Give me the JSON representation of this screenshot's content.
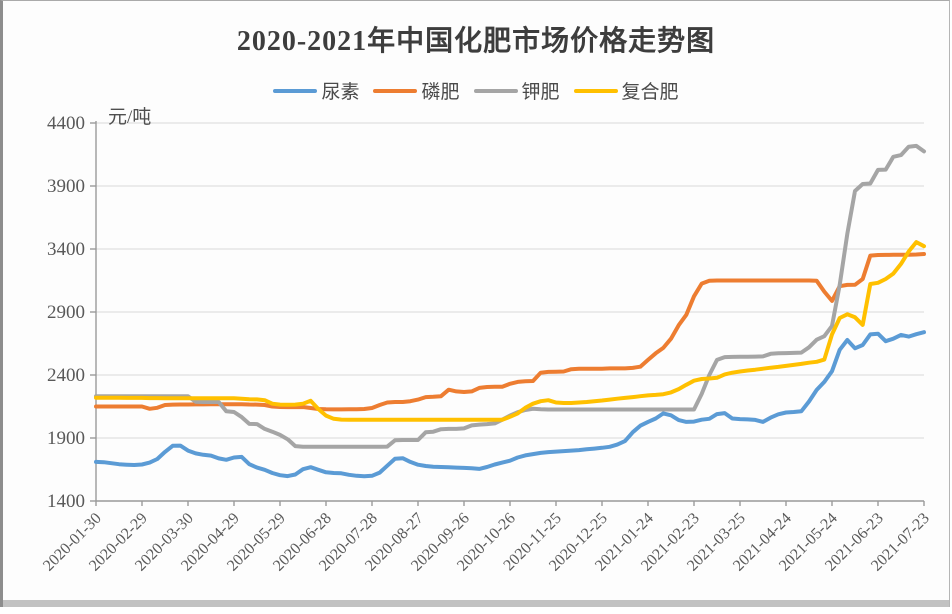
{
  "page": {
    "background": "#fdfdfd",
    "bottom_bar_color": "#c2c2c2"
  },
  "colors": {
    "grid": "#d9d9d9",
    "axis": "#9a9a9a",
    "tick_text": "#595959",
    "title_text": "#3d3d3d"
  },
  "chart_data": {
    "type": "line",
    "title": "2020-2021年中国化肥市场价格走势图",
    "unit_label": "元/吨",
    "legend_position": "top",
    "grid": "horizontal",
    "y_axis": {
      "min": 1400,
      "max": 4400,
      "step": 500,
      "ticks": [
        1400,
        1900,
        2400,
        2900,
        3400,
        3900,
        4400
      ]
    },
    "x_tick_labels": [
      "2020-01-30",
      "2020-02-29",
      "2020-03-30",
      "2020-04-29",
      "2020-05-29",
      "2020-06-28",
      "2020-07-28",
      "2020-08-27",
      "2020-09-26",
      "2020-10-26",
      "2020-11-25",
      "2020-12-25",
      "2021-01-24",
      "2021-02-23",
      "2021-03-25",
      "2021-04-24",
      "2021-05-24",
      "2021-06-23",
      "2021-07-23"
    ],
    "x_tick_every": 6,
    "dates": [
      "2020-01-30",
      "2020-02-04",
      "2020-02-09",
      "2020-02-14",
      "2020-02-19",
      "2020-02-24",
      "2020-02-29",
      "2020-03-05",
      "2020-03-10",
      "2020-03-15",
      "2020-03-20",
      "2020-03-25",
      "2020-03-30",
      "2020-04-04",
      "2020-04-09",
      "2020-04-14",
      "2020-04-19",
      "2020-04-24",
      "2020-04-29",
      "2020-05-04",
      "2020-05-09",
      "2020-05-14",
      "2020-05-19",
      "2020-05-24",
      "2020-05-29",
      "2020-06-03",
      "2020-06-08",
      "2020-06-13",
      "2020-06-18",
      "2020-06-23",
      "2020-06-28",
      "2020-07-03",
      "2020-07-08",
      "2020-07-13",
      "2020-07-18",
      "2020-07-23",
      "2020-07-28",
      "2020-08-02",
      "2020-08-07",
      "2020-08-12",
      "2020-08-17",
      "2020-08-22",
      "2020-08-27",
      "2020-09-01",
      "2020-09-06",
      "2020-09-11",
      "2020-09-16",
      "2020-09-21",
      "2020-09-26",
      "2020-10-01",
      "2020-10-06",
      "2020-10-11",
      "2020-10-16",
      "2020-10-21",
      "2020-10-26",
      "2020-10-31",
      "2020-11-05",
      "2020-11-10",
      "2020-11-15",
      "2020-11-20",
      "2020-11-25",
      "2020-11-30",
      "2020-12-05",
      "2020-12-10",
      "2020-12-15",
      "2020-12-20",
      "2020-12-25",
      "2020-12-30",
      "2021-01-04",
      "2021-01-09",
      "2021-01-14",
      "2021-01-19",
      "2021-01-24",
      "2021-01-29",
      "2021-02-03",
      "2021-02-08",
      "2021-02-13",
      "2021-02-18",
      "2021-02-23",
      "2021-02-28",
      "2021-03-05",
      "2021-03-10",
      "2021-03-15",
      "2021-03-20",
      "2021-03-25",
      "2021-03-30",
      "2021-04-04",
      "2021-04-09",
      "2021-04-14",
      "2021-04-19",
      "2021-04-24",
      "2021-04-29",
      "2021-05-04",
      "2021-05-09",
      "2021-05-14",
      "2021-05-19",
      "2021-05-24",
      "2021-05-29",
      "2021-06-03",
      "2021-06-08",
      "2021-06-13",
      "2021-06-18",
      "2021-06-23",
      "2021-06-28",
      "2021-07-03",
      "2021-07-08",
      "2021-07-13",
      "2021-07-18",
      "2021-07-23"
    ],
    "series": [
      {
        "id": "urea",
        "name": "尿素",
        "color": "#5B9BD5",
        "values": [
          1710,
          1708,
          1700,
          1692,
          1688,
          1686,
          1690,
          1705,
          1733,
          1790,
          1838,
          1840,
          1800,
          1778,
          1767,
          1760,
          1738,
          1727,
          1745,
          1750,
          1692,
          1665,
          1648,
          1622,
          1605,
          1598,
          1610,
          1652,
          1668,
          1648,
          1628,
          1622,
          1620,
          1608,
          1600,
          1596,
          1600,
          1625,
          1680,
          1735,
          1740,
          1710,
          1688,
          1678,
          1672,
          1670,
          1668,
          1665,
          1663,
          1660,
          1655,
          1670,
          1690,
          1705,
          1720,
          1745,
          1762,
          1772,
          1782,
          1788,
          1792,
          1796,
          1800,
          1804,
          1810,
          1816,
          1822,
          1830,
          1848,
          1875,
          1945,
          1998,
          2028,
          2055,
          2095,
          2080,
          2042,
          2028,
          2030,
          2045,
          2052,
          2090,
          2098,
          2055,
          2050,
          2048,
          2044,
          2028,
          2062,
          2088,
          2102,
          2106,
          2112,
          2190,
          2282,
          2345,
          2430,
          2600,
          2678,
          2612,
          2638,
          2722,
          2728,
          2668,
          2688,
          2718,
          2705,
          2724,
          2740
        ]
      },
      {
        "id": "phosphate",
        "name": "磷肥",
        "color": "#ED7D31",
        "values": [
          2150,
          2150,
          2150,
          2150,
          2150,
          2150,
          2150,
          2132,
          2140,
          2162,
          2165,
          2166,
          2166,
          2167,
          2167,
          2168,
          2168,
          2168,
          2168,
          2168,
          2166,
          2165,
          2162,
          2150,
          2146,
          2145,
          2145,
          2146,
          2138,
          2130,
          2128,
          2127,
          2127,
          2128,
          2128,
          2130,
          2138,
          2162,
          2182,
          2186,
          2186,
          2192,
          2205,
          2225,
          2227,
          2232,
          2283,
          2270,
          2265,
          2270,
          2298,
          2305,
          2306,
          2307,
          2330,
          2345,
          2350,
          2352,
          2418,
          2425,
          2426,
          2428,
          2446,
          2450,
          2450,
          2450,
          2450,
          2452,
          2452,
          2452,
          2456,
          2466,
          2520,
          2572,
          2615,
          2688,
          2795,
          2878,
          3025,
          3125,
          3148,
          3150,
          3150,
          3150,
          3150,
          3150,
          3150,
          3150,
          3150,
          3150,
          3150,
          3150,
          3150,
          3150,
          3148,
          3062,
          2988,
          3105,
          3115,
          3116,
          3162,
          3348,
          3352,
          3353,
          3354,
          3355,
          3355,
          3356,
          3360
        ]
      },
      {
        "id": "potash",
        "name": "钾肥",
        "color": "#A5A5A5",
        "values": [
          2232,
          2232,
          2232,
          2232,
          2232,
          2232,
          2232,
          2232,
          2232,
          2232,
          2232,
          2232,
          2232,
          2188,
          2186,
          2186,
          2186,
          2112,
          2106,
          2066,
          2012,
          2010,
          1972,
          1950,
          1925,
          1890,
          1836,
          1830,
          1830,
          1830,
          1830,
          1830,
          1830,
          1830,
          1830,
          1830,
          1830,
          1830,
          1832,
          1882,
          1884,
          1884,
          1884,
          1945,
          1950,
          1970,
          1972,
          1972,
          1976,
          2000,
          2006,
          2010,
          2016,
          2045,
          2078,
          2105,
          2122,
          2132,
          2128,
          2126,
          2126,
          2126,
          2126,
          2126,
          2126,
          2126,
          2126,
          2126,
          2126,
          2126,
          2126,
          2126,
          2126,
          2126,
          2126,
          2126,
          2126,
          2126,
          2126,
          2250,
          2400,
          2520,
          2542,
          2544,
          2545,
          2545,
          2546,
          2548,
          2568,
          2572,
          2574,
          2575,
          2578,
          2620,
          2680,
          2708,
          2790,
          3115,
          3520,
          3860,
          3916,
          3920,
          4028,
          4030,
          4132,
          4145,
          4212,
          4218,
          4175
        ]
      },
      {
        "id": "compound",
        "name": "复合肥",
        "color": "#FFC000",
        "values": [
          2220,
          2220,
          2219,
          2219,
          2218,
          2218,
          2218,
          2217,
          2217,
          2216,
          2216,
          2216,
          2215,
          2215,
          2215,
          2215,
          2215,
          2215,
          2215,
          2212,
          2208,
          2206,
          2200,
          2172,
          2165,
          2164,
          2165,
          2172,
          2195,
          2130,
          2078,
          2052,
          2046,
          2045,
          2045,
          2045,
          2045,
          2045,
          2045,
          2045,
          2045,
          2045,
          2045,
          2045,
          2045,
          2045,
          2045,
          2045,
          2045,
          2045,
          2045,
          2045,
          2045,
          2045,
          2068,
          2095,
          2140,
          2172,
          2192,
          2200,
          2182,
          2178,
          2178,
          2182,
          2186,
          2192,
          2198,
          2205,
          2212,
          2218,
          2225,
          2232,
          2238,
          2242,
          2248,
          2262,
          2288,
          2322,
          2355,
          2368,
          2372,
          2378,
          2405,
          2418,
          2428,
          2436,
          2442,
          2450,
          2458,
          2464,
          2472,
          2480,
          2488,
          2498,
          2505,
          2522,
          2722,
          2852,
          2882,
          2858,
          2798,
          3122,
          3132,
          3162,
          3205,
          3282,
          3380,
          3455,
          3422
        ]
      }
    ]
  }
}
